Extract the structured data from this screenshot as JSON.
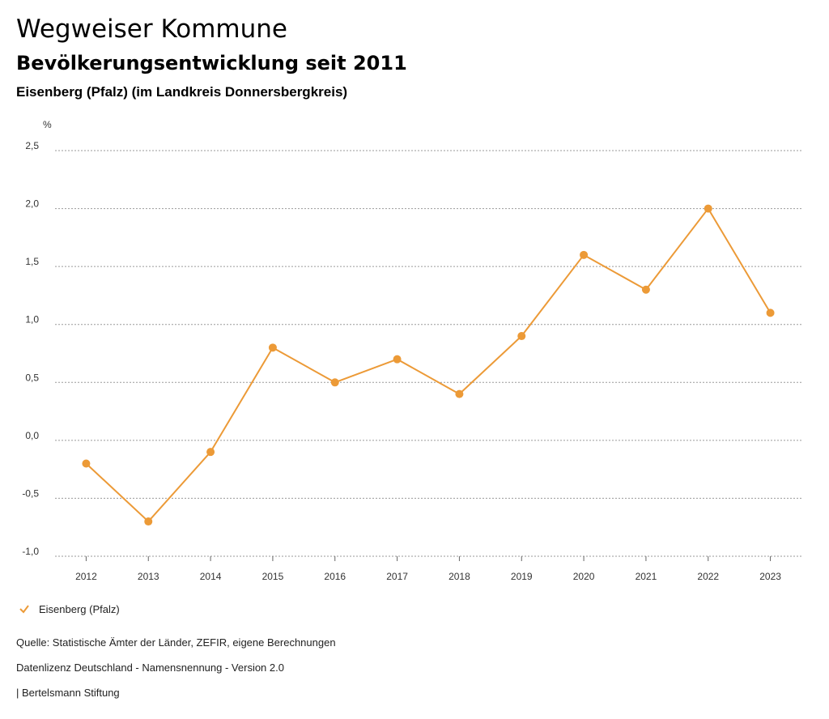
{
  "header": {
    "title": "Wegweiser Kommune",
    "subtitle": "Bevölkerungsentwicklung seit 2011",
    "region": "Eisenberg (Pfalz) (im Landkreis Donnersbergkreis)"
  },
  "chart_data": {
    "type": "line",
    "ylabel": "%",
    "ylim": [
      -1.0,
      2.5
    ],
    "yticks": [
      "-1,0",
      "-0,5",
      "0,0",
      "0,5",
      "1,0",
      "1,5",
      "2,0",
      "2,5"
    ],
    "ytick_values": [
      -1.0,
      -0.5,
      0.0,
      0.5,
      1.0,
      1.5,
      2.0,
      2.5
    ],
    "categories": [
      "2012",
      "2013",
      "2014",
      "2015",
      "2016",
      "2017",
      "2018",
      "2019",
      "2020",
      "2021",
      "2022",
      "2023"
    ],
    "series": [
      {
        "name": "Eisenberg (Pfalz)",
        "color": "#ec9a37",
        "values": [
          -0.2,
          -0.7,
          -0.1,
          0.8,
          0.5,
          0.7,
          0.4,
          0.9,
          1.6,
          1.3,
          2.0,
          1.1
        ]
      }
    ],
    "grid": true,
    "legend": "bottom-left"
  },
  "legend": {
    "label": "Eisenberg (Pfalz)",
    "icon": "check-icon"
  },
  "footer": {
    "source": "Quelle: Statistische Ämter der Länder, ZEFIR, eigene Berechnungen",
    "license": "Datenlizenz Deutschland - Namensnennung - Version 2.0",
    "publisher": "| Bertelsmann Stiftung"
  }
}
